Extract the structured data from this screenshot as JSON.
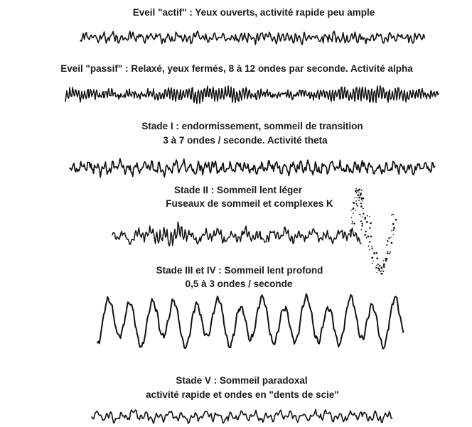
{
  "colors": {
    "background": "#ffffff",
    "text": "#1a1a1a",
    "trace": "#111111"
  },
  "stages": [
    {
      "id": "eveil-actif",
      "caption_lines": [
        "Eveil \"actif\" : Yeux ouverts, activité rapide peu ample"
      ]
    },
    {
      "id": "eveil-passif",
      "caption_lines": [
        "Eveil \"passif\" :  Relaxé, yeux fermés, 8 à 12 ondes par seconde. Activité alpha"
      ]
    },
    {
      "id": "stade-1",
      "caption_lines": [
        "Stade I : endormissement, sommeil de transition",
        "3 à 7 ondes / seconde. Activité theta"
      ]
    },
    {
      "id": "stade-2",
      "caption_lines": [
        "Stade II : Sommeil lent léger",
        "Fuseaux de sommeil et complexes K"
      ]
    },
    {
      "id": "stade-3-4",
      "caption_lines": [
        "Stade III et IV : Sommeil lent profond",
        "0,5 à 3 ondes / seconde"
      ]
    },
    {
      "id": "stade-5",
      "caption_lines": [
        "Stade V : Sommeil paradoxal",
        "activité rapide et ondes en \"dents de scie\""
      ]
    }
  ]
}
